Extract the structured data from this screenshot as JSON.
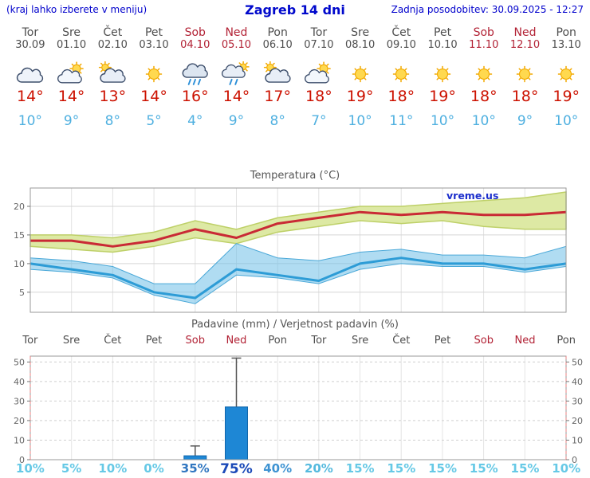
{
  "header": {
    "left_note": "(kraj lahko izberete v meniju)",
    "title": "Zagreb 14 dni",
    "updated": "Zadnja posodobitev: 30.09.2025 - 12:27"
  },
  "colors": {
    "header_blue": "#0008cc",
    "tmax_red": "#cc1100",
    "tmin_blue": "#4fb0e0",
    "weekend_red": "#b22235",
    "weekday_gray": "#4e4e4e",
    "bar_blue": "#1e87d5",
    "max_line_red": "#c92a35",
    "min_line_blue": "#2d9cd6",
    "max_band_green": "#dde9a4",
    "min_band_blue": "#6fc0e8"
  },
  "days": [
    {
      "name": "Tor",
      "date": "30.09",
      "weekend": false,
      "icon": "cloudy",
      "tmax": "14°",
      "tmin": "10°",
      "prob": "10%",
      "prob_color": "#66c9e6",
      "prob_em": false
    },
    {
      "name": "Sre",
      "date": "01.10",
      "weekend": false,
      "icon": "partly-cloudy",
      "tmax": "14°",
      "tmin": "9°",
      "prob": "5%",
      "prob_color": "#66c9e6",
      "prob_em": false
    },
    {
      "name": "Čet",
      "date": "02.10",
      "weekend": false,
      "icon": "mostly-cloudy",
      "tmax": "13°",
      "tmin": "8°",
      "prob": "10%",
      "prob_color": "#66c9e6",
      "prob_em": false
    },
    {
      "name": "Pet",
      "date": "03.10",
      "weekend": false,
      "icon": "sunny",
      "tmax": "14°",
      "tmin": "5°",
      "prob": "0%",
      "prob_color": "#66c9e6",
      "prob_em": false
    },
    {
      "name": "Sob",
      "date": "04.10",
      "weekend": true,
      "icon": "rain",
      "tmax": "16°",
      "tmin": "4°",
      "prob": "35%",
      "prob_color": "#3076c0",
      "prob_em": false
    },
    {
      "name": "Ned",
      "date": "05.10",
      "weekend": true,
      "icon": "showers",
      "tmax": "14°",
      "tmin": "9°",
      "prob": "75%",
      "prob_color": "#1a49b8",
      "prob_em": true
    },
    {
      "name": "Pon",
      "date": "06.10",
      "weekend": false,
      "icon": "mostly-cloudy",
      "tmax": "17°",
      "tmin": "8°",
      "prob": "40%",
      "prob_color": "#3e93d2",
      "prob_em": false
    },
    {
      "name": "Tor",
      "date": "07.10",
      "weekend": false,
      "icon": "partly-cloudy",
      "tmax": "18°",
      "tmin": "7°",
      "prob": "20%",
      "prob_color": "#55bade",
      "prob_em": false
    },
    {
      "name": "Sre",
      "date": "08.10",
      "weekend": false,
      "icon": "sunny",
      "tmax": "19°",
      "tmin": "10°",
      "prob": "15%",
      "prob_color": "#66c9e6",
      "prob_em": false
    },
    {
      "name": "Čet",
      "date": "09.10",
      "weekend": false,
      "icon": "sunny",
      "tmax": "18°",
      "tmin": "11°",
      "prob": "15%",
      "prob_color": "#66c9e6",
      "prob_em": false
    },
    {
      "name": "Pet",
      "date": "10.10",
      "weekend": false,
      "icon": "sunny",
      "tmax": "19°",
      "tmin": "10°",
      "prob": "15%",
      "prob_color": "#66c9e6",
      "prob_em": false
    },
    {
      "name": "Sob",
      "date": "11.10",
      "weekend": true,
      "icon": "sunny",
      "tmax": "18°",
      "tmin": "10°",
      "prob": "15%",
      "prob_color": "#66c9e6",
      "prob_em": false
    },
    {
      "name": "Ned",
      "date": "12.10",
      "weekend": true,
      "icon": "sunny",
      "tmax": "18°",
      "tmin": "9°",
      "prob": "15%",
      "prob_color": "#66c9e6",
      "prob_em": false
    },
    {
      "name": "Pon",
      "date": "13.10",
      "weekend": false,
      "icon": "sunny",
      "tmax": "19°",
      "tmin": "10°",
      "prob": "10%",
      "prob_color": "#66c9e6",
      "prob_em": false
    }
  ],
  "chart_data": [
    {
      "type": "line",
      "title": "Temperatura (°C)",
      "watermark": "vreme.us",
      "categories": [
        "Tor",
        "Sre",
        "Čet",
        "Pet",
        "Sob",
        "Ned",
        "Pon",
        "Tor",
        "Sre",
        "Čet",
        "Pet",
        "Sob",
        "Ned",
        "Pon"
      ],
      "ylim": [
        1.5,
        23.2
      ],
      "yticks": [
        5,
        10,
        15,
        20
      ],
      "grid": true,
      "legend": "none",
      "series": [
        {
          "name": "tmax",
          "color": "#c92a35",
          "values": [
            14,
            14,
            13,
            14,
            16,
            14.5,
            17,
            18,
            19,
            18.5,
            19,
            18.5,
            18.5,
            19
          ]
        },
        {
          "name": "tmax_band_upper",
          "color": "#bed068",
          "values": [
            15,
            15,
            14.5,
            15.5,
            17.5,
            16,
            18,
            19,
            20,
            20,
            20.5,
            21,
            21.5,
            22.5
          ]
        },
        {
          "name": "tmax_band_lower",
          "color": "#bed068",
          "values": [
            13,
            12.5,
            12,
            13,
            14.5,
            13.5,
            15.5,
            16.5,
            17.5,
            17,
            17.5,
            16.5,
            16,
            16
          ]
        },
        {
          "name": "tmin",
          "color": "#2d9cd6",
          "values": [
            10,
            9,
            8,
            5,
            4,
            9,
            8,
            7,
            10,
            11,
            10,
            10,
            9,
            10
          ]
        },
        {
          "name": "tmin_band_upper",
          "color": "#4aa8d8",
          "values": [
            11,
            10.5,
            9.5,
            6.5,
            6.5,
            13.5,
            11,
            10.5,
            12,
            12.5,
            11.5,
            11.5,
            11,
            13
          ]
        },
        {
          "name": "tmin_band_lower",
          "color": "#4aa8d8",
          "values": [
            9,
            8.5,
            7.5,
            4.5,
            3,
            8,
            7.5,
            6.5,
            9,
            10,
            9.5,
            9.5,
            8.5,
            9.5
          ]
        }
      ]
    },
    {
      "type": "bar",
      "title": "Padavine (mm) / Verjetnost padavin (%)",
      "categories": [
        "Tor",
        "Sre",
        "Čet",
        "Pet",
        "Sob",
        "Ned",
        "Pon",
        "Tor",
        "Sre",
        "Čet",
        "Pet",
        "Sob",
        "Ned",
        "Pon"
      ],
      "weekend_mask": [
        false,
        false,
        false,
        false,
        true,
        true,
        false,
        false,
        false,
        false,
        false,
        true,
        true,
        false
      ],
      "ylim": [
        0,
        53
      ],
      "yticks": [
        0,
        10,
        20,
        30,
        40,
        50
      ],
      "bar_color": "#1e87d5",
      "values_mm": [
        0,
        0,
        0,
        0,
        2,
        27,
        0,
        0,
        0,
        0,
        0,
        0,
        0,
        0
      ],
      "whisker_max_mm": [
        0,
        0,
        0,
        0,
        7,
        52,
        0,
        0,
        0,
        0,
        0,
        0,
        0,
        0
      ],
      "probabilities_pct": [
        10,
        5,
        10,
        0,
        35,
        75,
        40,
        20,
        15,
        15,
        15,
        15,
        15,
        10
      ]
    }
  ]
}
